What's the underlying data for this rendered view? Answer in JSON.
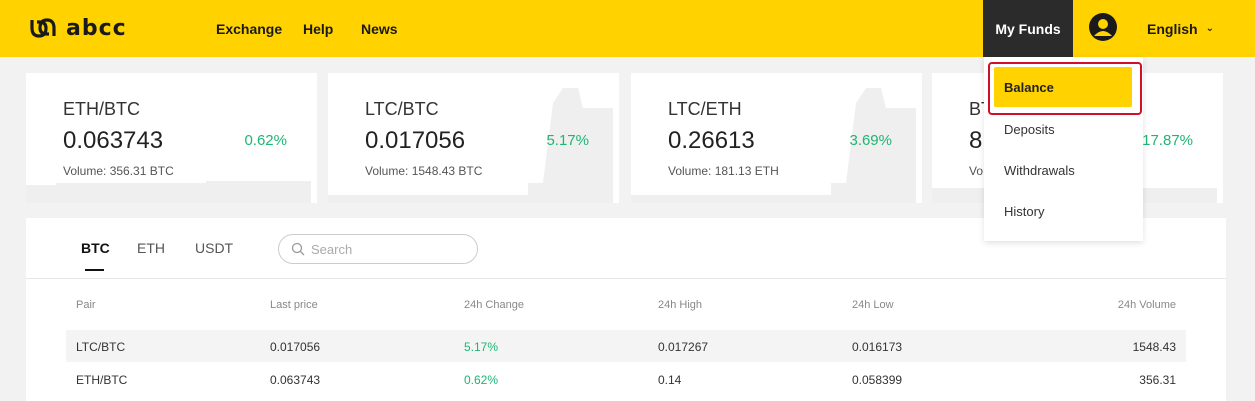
{
  "header": {
    "logo_text": "abcc",
    "nav": [
      "Exchange",
      "Help",
      "News"
    ],
    "my_funds": "My Funds",
    "language": "English"
  },
  "tickers": [
    {
      "pair": "ETH/BTC",
      "price": "0.063743",
      "change": "0.62%",
      "volume": "Volume: 356.31 BTC"
    },
    {
      "pair": "LTC/BTC",
      "price": "0.017056",
      "change": "5.17%",
      "volume": "Volume: 1548.43 BTC"
    },
    {
      "pair": "LTC/ETH",
      "price": "0.26613",
      "change": "3.69%",
      "volume": "Volume: 181.13 ETH"
    },
    {
      "pair": "BT",
      "price": "8",
      "change": "17.87%",
      "volume": "Vo"
    }
  ],
  "market": {
    "tabs": [
      "BTC",
      "ETH",
      "USDT"
    ],
    "active_tab": "BTC",
    "search_placeholder": "Search",
    "columns": [
      "Pair",
      "Last price",
      "24h Change",
      "24h High",
      "24h Low",
      "24h Volume"
    ],
    "rows": [
      {
        "pair": "LTC/BTC",
        "last": "0.017056",
        "change": "5.17%",
        "high": "0.017267",
        "low": "0.016173",
        "volume": "1548.43"
      },
      {
        "pair": "ETH/BTC",
        "last": "0.063743",
        "change": "0.62%",
        "high": "0.14",
        "low": "0.058399",
        "volume": "356.31"
      }
    ]
  },
  "funds_menu": {
    "items": [
      "Balance",
      "Deposits",
      "Withdrawals",
      "History"
    ],
    "active": "Balance"
  },
  "colors": {
    "brand": "#ffd200",
    "positive": "#1fb574",
    "highlight": "#d0102a"
  }
}
